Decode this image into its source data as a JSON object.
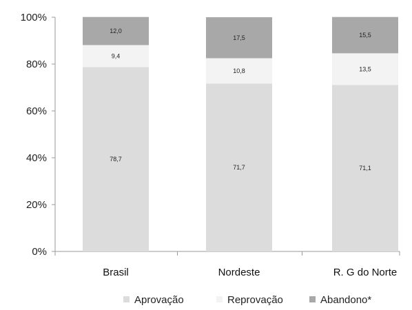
{
  "chart_data": {
    "type": "bar",
    "stacked": true,
    "percent": true,
    "categories": [
      "Brasil",
      "Nordeste",
      "R. G do Norte"
    ],
    "series": [
      {
        "name": "Aprovação",
        "color": "#dcdcdc",
        "values": [
          78.7,
          71.7,
          71.1
        ],
        "labels": [
          "78,7",
          "71,7",
          "71,1"
        ]
      },
      {
        "name": "Reprovação",
        "color": "#f3f3f3",
        "values": [
          9.4,
          10.8,
          13.5
        ],
        "labels": [
          "9,4",
          "10,8",
          "13,5"
        ]
      },
      {
        "name": "Abandono*",
        "color": "#a8a8a8",
        "values": [
          12.0,
          17.5,
          15.5
        ],
        "labels": [
          "12,0",
          "17,5",
          "15,5"
        ]
      }
    ],
    "yticks": [
      "0%",
      "20%",
      "40%",
      "60%",
      "80%",
      "100%"
    ],
    "ylim": [
      0,
      100
    ],
    "grid": false,
    "legend_position": "bottom"
  }
}
